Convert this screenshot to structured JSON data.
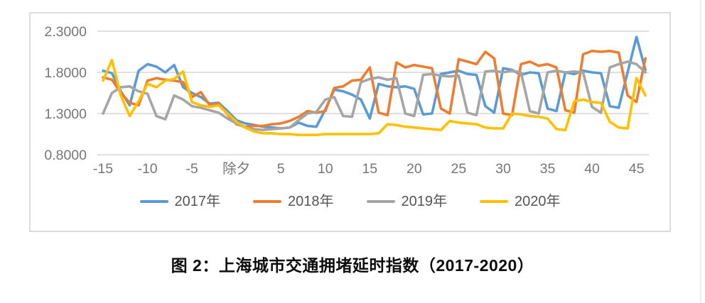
{
  "page": {
    "background": "#ffffff"
  },
  "caption": "图 2：上海城市交通拥堵延时指数（2017-2020）",
  "chart_data": {
    "type": "line",
    "title": "",
    "caption": "图 2：上海城市交通拥堵延时指数（2017-2020）",
    "xlabel": "",
    "ylabel": "",
    "grid": "horizontal",
    "legend_position": "bottom",
    "ylim": [
      0.8,
      2.3
    ],
    "axis_text_color": "#767676",
    "gridline_color": "#d6d6d6",
    "frame_color": "#dcdcdc",
    "y_ticks": [
      {
        "value": 0.8,
        "label": "0.8000"
      },
      {
        "value": 1.3,
        "label": "1.3000"
      },
      {
        "value": 1.8,
        "label": "1.8000"
      },
      {
        "value": 2.3,
        "label": "2.3000"
      }
    ],
    "x_ticks": [
      {
        "day": -15,
        "label": "-15"
      },
      {
        "day": -10,
        "label": "-10"
      },
      {
        "day": -5,
        "label": "-5"
      },
      {
        "day": 0,
        "label": "除夕"
      },
      {
        "day": 5,
        "label": "5"
      },
      {
        "day": 10,
        "label": "10"
      },
      {
        "day": 15,
        "label": "15"
      },
      {
        "day": 20,
        "label": "20"
      },
      {
        "day": 25,
        "label": "25"
      },
      {
        "day": 30,
        "label": "30"
      },
      {
        "day": 35,
        "label": "35"
      },
      {
        "day": 40,
        "label": "40"
      },
      {
        "day": 45,
        "label": "45"
      }
    ],
    "x_days": [
      -15,
      -14,
      -13,
      -12,
      -11,
      -10,
      -9,
      -8,
      -7,
      -6,
      -5,
      -4,
      -3,
      -2,
      -1,
      0,
      1,
      2,
      3,
      4,
      5,
      6,
      7,
      8,
      9,
      10,
      11,
      12,
      13,
      14,
      15,
      16,
      17,
      18,
      19,
      20,
      21,
      22,
      23,
      24,
      25,
      26,
      27,
      28,
      29,
      30,
      31,
      32,
      33,
      34,
      35,
      36,
      37,
      38,
      39,
      40,
      41,
      42,
      43,
      44,
      45,
      46
    ],
    "series": [
      {
        "name": "2017年",
        "color": "#5B9BD5",
        "values": [
          1.82,
          1.79,
          1.57,
          1.4,
          1.82,
          1.9,
          1.87,
          1.8,
          1.89,
          1.62,
          1.55,
          1.5,
          1.42,
          1.43,
          1.33,
          1.22,
          1.18,
          1.16,
          1.14,
          1.13,
          1.12,
          1.13,
          1.19,
          1.15,
          1.14,
          1.35,
          1.59,
          1.57,
          1.53,
          1.47,
          1.24,
          1.66,
          1.63,
          1.62,
          1.63,
          1.6,
          1.29,
          1.3,
          1.78,
          1.8,
          1.82,
          1.78,
          1.77,
          1.39,
          1.31,
          1.85,
          1.83,
          1.77,
          1.8,
          1.79,
          1.36,
          1.33,
          1.8,
          1.78,
          1.82,
          1.8,
          1.79,
          1.39,
          1.37,
          1.8,
          2.23,
          1.83
        ]
      },
      {
        "name": "2018年",
        "color": "#ED7D31",
        "values": [
          1.74,
          1.71,
          1.55,
          1.43,
          1.4,
          1.7,
          1.73,
          1.71,
          1.7,
          1.68,
          1.5,
          1.56,
          1.4,
          1.42,
          1.29,
          1.17,
          1.14,
          1.15,
          1.15,
          1.17,
          1.18,
          1.21,
          1.26,
          1.33,
          1.31,
          1.33,
          1.61,
          1.63,
          1.7,
          1.71,
          1.86,
          1.31,
          1.28,
          1.92,
          1.86,
          1.89,
          1.87,
          1.85,
          1.36,
          1.3,
          1.96,
          1.93,
          1.9,
          2.05,
          1.97,
          1.3,
          1.28,
          1.9,
          1.93,
          1.88,
          1.9,
          1.86,
          1.34,
          1.31,
          2.02,
          2.06,
          2.05,
          2.06,
          2.04,
          1.52,
          1.44,
          1.97
        ]
      },
      {
        "name": "2019年",
        "color": "#A5A5A5",
        "values": [
          1.3,
          1.55,
          1.62,
          1.63,
          1.57,
          1.54,
          1.27,
          1.23,
          1.52,
          1.47,
          1.39,
          1.37,
          1.34,
          1.31,
          1.24,
          1.18,
          1.13,
          1.11,
          1.1,
          1.11,
          1.12,
          1.13,
          1.22,
          1.3,
          1.32,
          1.47,
          1.5,
          1.27,
          1.26,
          1.68,
          1.72,
          1.74,
          1.71,
          1.73,
          1.3,
          1.27,
          1.77,
          1.78,
          1.76,
          1.75,
          1.76,
          1.31,
          1.28,
          1.81,
          1.82,
          1.8,
          1.82,
          1.8,
          1.33,
          1.3,
          1.8,
          1.82,
          1.8,
          1.81,
          1.8,
          1.38,
          1.31,
          1.86,
          1.9,
          1.93,
          1.9,
          1.8
        ]
      },
      {
        "name": "2020年",
        "color": "#FFC000",
        "values": [
          1.7,
          1.95,
          1.52,
          1.27,
          1.45,
          1.66,
          1.62,
          1.7,
          1.72,
          1.81,
          1.44,
          1.4,
          1.38,
          1.4,
          1.3,
          1.2,
          1.13,
          1.08,
          1.06,
          1.06,
          1.05,
          1.05,
          1.04,
          1.04,
          1.04,
          1.05,
          1.05,
          1.05,
          1.05,
          1.05,
          1.05,
          1.06,
          1.17,
          1.16,
          1.14,
          1.13,
          1.12,
          1.11,
          1.1,
          1.21,
          1.19,
          1.18,
          1.17,
          1.13,
          1.12,
          1.12,
          1.3,
          1.29,
          1.27,
          1.26,
          1.24,
          1.11,
          1.1,
          1.45,
          1.47,
          1.44,
          1.43,
          1.2,
          1.13,
          1.12,
          1.73,
          1.52
        ]
      }
    ]
  }
}
